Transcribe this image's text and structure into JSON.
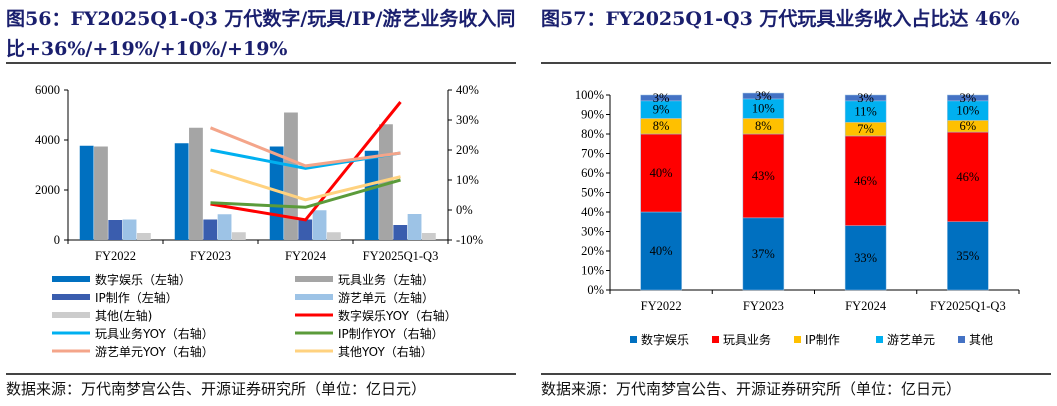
{
  "left": {
    "title": "图56：FY2025Q1-Q3 万代数字/玩具/IP/游艺业务收入同比+36%/+19%/+10%/+19%",
    "source": "数据来源：万代南梦宫公告、开源证券研究所（单位：亿日元）"
  },
  "right": {
    "title": "图57：FY2025Q1-Q3 万代玩具业务收入占比达 46%",
    "source": "数据来源：万代南梦宫公告、开源证券研究所（单位：亿日元）"
  },
  "chart_data": [
    {
      "type": "bar+line",
      "categories": [
        "FY2022",
        "FY2023",
        "FY2024",
        "FY2025Q1-Q3"
      ],
      "left_axis": {
        "ylim": [
          0,
          6000
        ],
        "ticks": [
          "0",
          "2000",
          "4000",
          "6000"
        ]
      },
      "right_axis": {
        "ylim": [
          -10,
          40
        ],
        "ticks": [
          "-10%",
          "0%",
          "10%",
          "20%",
          "30%",
          "40%"
        ]
      },
      "bars": [
        {
          "name": "数字娱乐（左轴）",
          "color": "#0070C0",
          "values": [
            3770,
            3870,
            3740,
            3570
          ]
        },
        {
          "name": "玩具业务（左轴）",
          "color": "#A5A5A5",
          "values": [
            3740,
            4490,
            5100,
            4630
          ]
        },
        {
          "name": "IP制作（左轴）",
          "color": "#3A5DAE",
          "values": [
            800,
            820,
            820,
            600
          ]
        },
        {
          "name": "游艺单元（左轴）",
          "color": "#9DC3E6",
          "values": [
            820,
            1030,
            1190,
            1040
          ]
        },
        {
          "name": "其他(左轴)",
          "color": "#CCCCCC",
          "values": [
            280,
            310,
            310,
            280
          ]
        }
      ],
      "lines": [
        {
          "name": "数字娱乐YOY（右轴）",
          "color": "#FF0000",
          "values": [
            null,
            2,
            -3.3,
            36
          ]
        },
        {
          "name": "玩具业务YOY（右轴）",
          "color": "#00B0F0",
          "values": [
            null,
            20,
            13.9,
            19
          ]
        },
        {
          "name": "IP制作YOY（右轴）",
          "color": "#5B9B3A",
          "values": [
            null,
            2.4,
            0.9,
            10
          ]
        },
        {
          "name": "游艺单元YOY（右轴）",
          "color": "#F4A58A",
          "values": [
            null,
            27.4,
            14.7,
            19
          ]
        },
        {
          "name": "其他YOY（右轴）",
          "color": "#FFD27F",
          "values": [
            null,
            13.3,
            3.4,
            11.1
          ]
        }
      ],
      "legend": "bottom"
    },
    {
      "type": "stacked-bar-100",
      "categories": [
        "FY2022",
        "FY2023",
        "FY2024",
        "FY2025Q1-Q3"
      ],
      "ylim": [
        0,
        100
      ],
      "ticks": [
        "0%",
        "10%",
        "20%",
        "30%",
        "40%",
        "50%",
        "60%",
        "70%",
        "80%",
        "90%",
        "100%"
      ],
      "series": [
        {
          "name": "数字娱乐",
          "color": "#0070C0",
          "values": [
            40,
            37,
            33,
            35
          ]
        },
        {
          "name": "玩具业务",
          "color": "#FF0000",
          "values": [
            40,
            43,
            46,
            46
          ]
        },
        {
          "name": "IP制作",
          "color": "#FFC000",
          "values": [
            8,
            8,
            7,
            6
          ]
        },
        {
          "name": "游艺单元",
          "color": "#00B0F0",
          "values": [
            9,
            10,
            11,
            10
          ]
        },
        {
          "name": "其他",
          "color": "#4472C4",
          "values": [
            3,
            3,
            3,
            3
          ]
        }
      ],
      "legend": "bottom"
    }
  ]
}
